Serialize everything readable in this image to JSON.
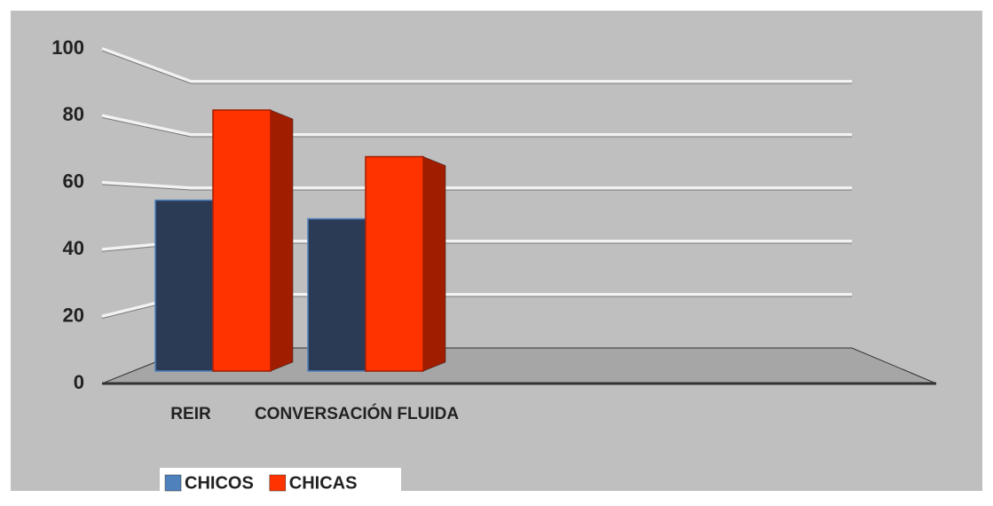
{
  "chart_data": {
    "type": "bar3d",
    "categories": [
      "REIR",
      "CONVERSACIÓN FLUIDA"
    ],
    "series": [
      {
        "name": "CHICOS",
        "color": "#4f81bd",
        "values": [
          55,
          49
        ]
      },
      {
        "name": "CHICAS",
        "color": "#ff3300",
        "values": [
          84,
          69
        ]
      }
    ],
    "ylim": [
      0,
      100
    ],
    "yticks": [
      0,
      20,
      40,
      60,
      80,
      100
    ],
    "grid": true,
    "legend": "bottom"
  }
}
